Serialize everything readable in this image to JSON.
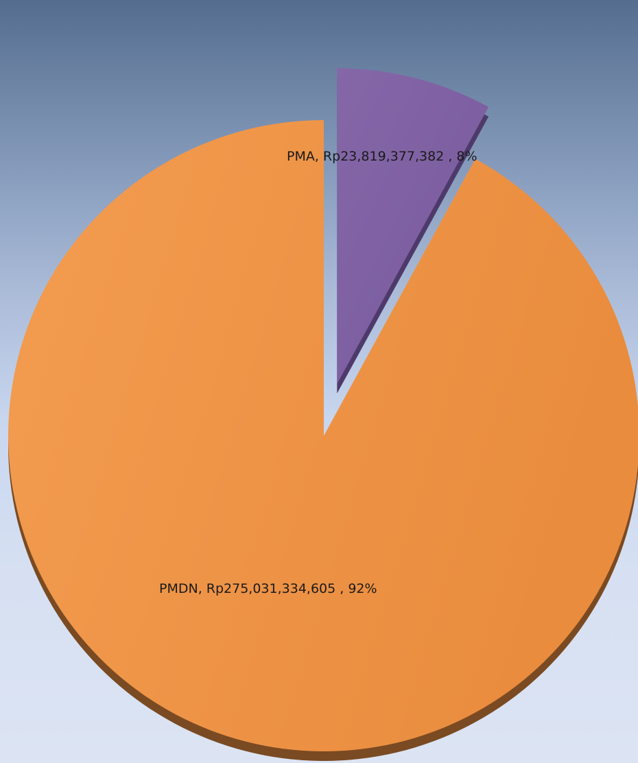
{
  "chart_data": {
    "type": "pie",
    "title": "",
    "slices": [
      {
        "name": "PMDN",
        "value": 275031334605,
        "percent": 92,
        "label": "PMDN,  Rp275,031,334,605 , 92%",
        "color": "#ee9445",
        "exploded": false
      },
      {
        "name": "PMA",
        "value": 23819377382,
        "percent": 8,
        "label": "PMA,  Rp23,819,377,382 , 8%",
        "color": "#7f63a3",
        "exploded": true
      }
    ],
    "legend": "none",
    "style": "3d-exploded"
  }
}
